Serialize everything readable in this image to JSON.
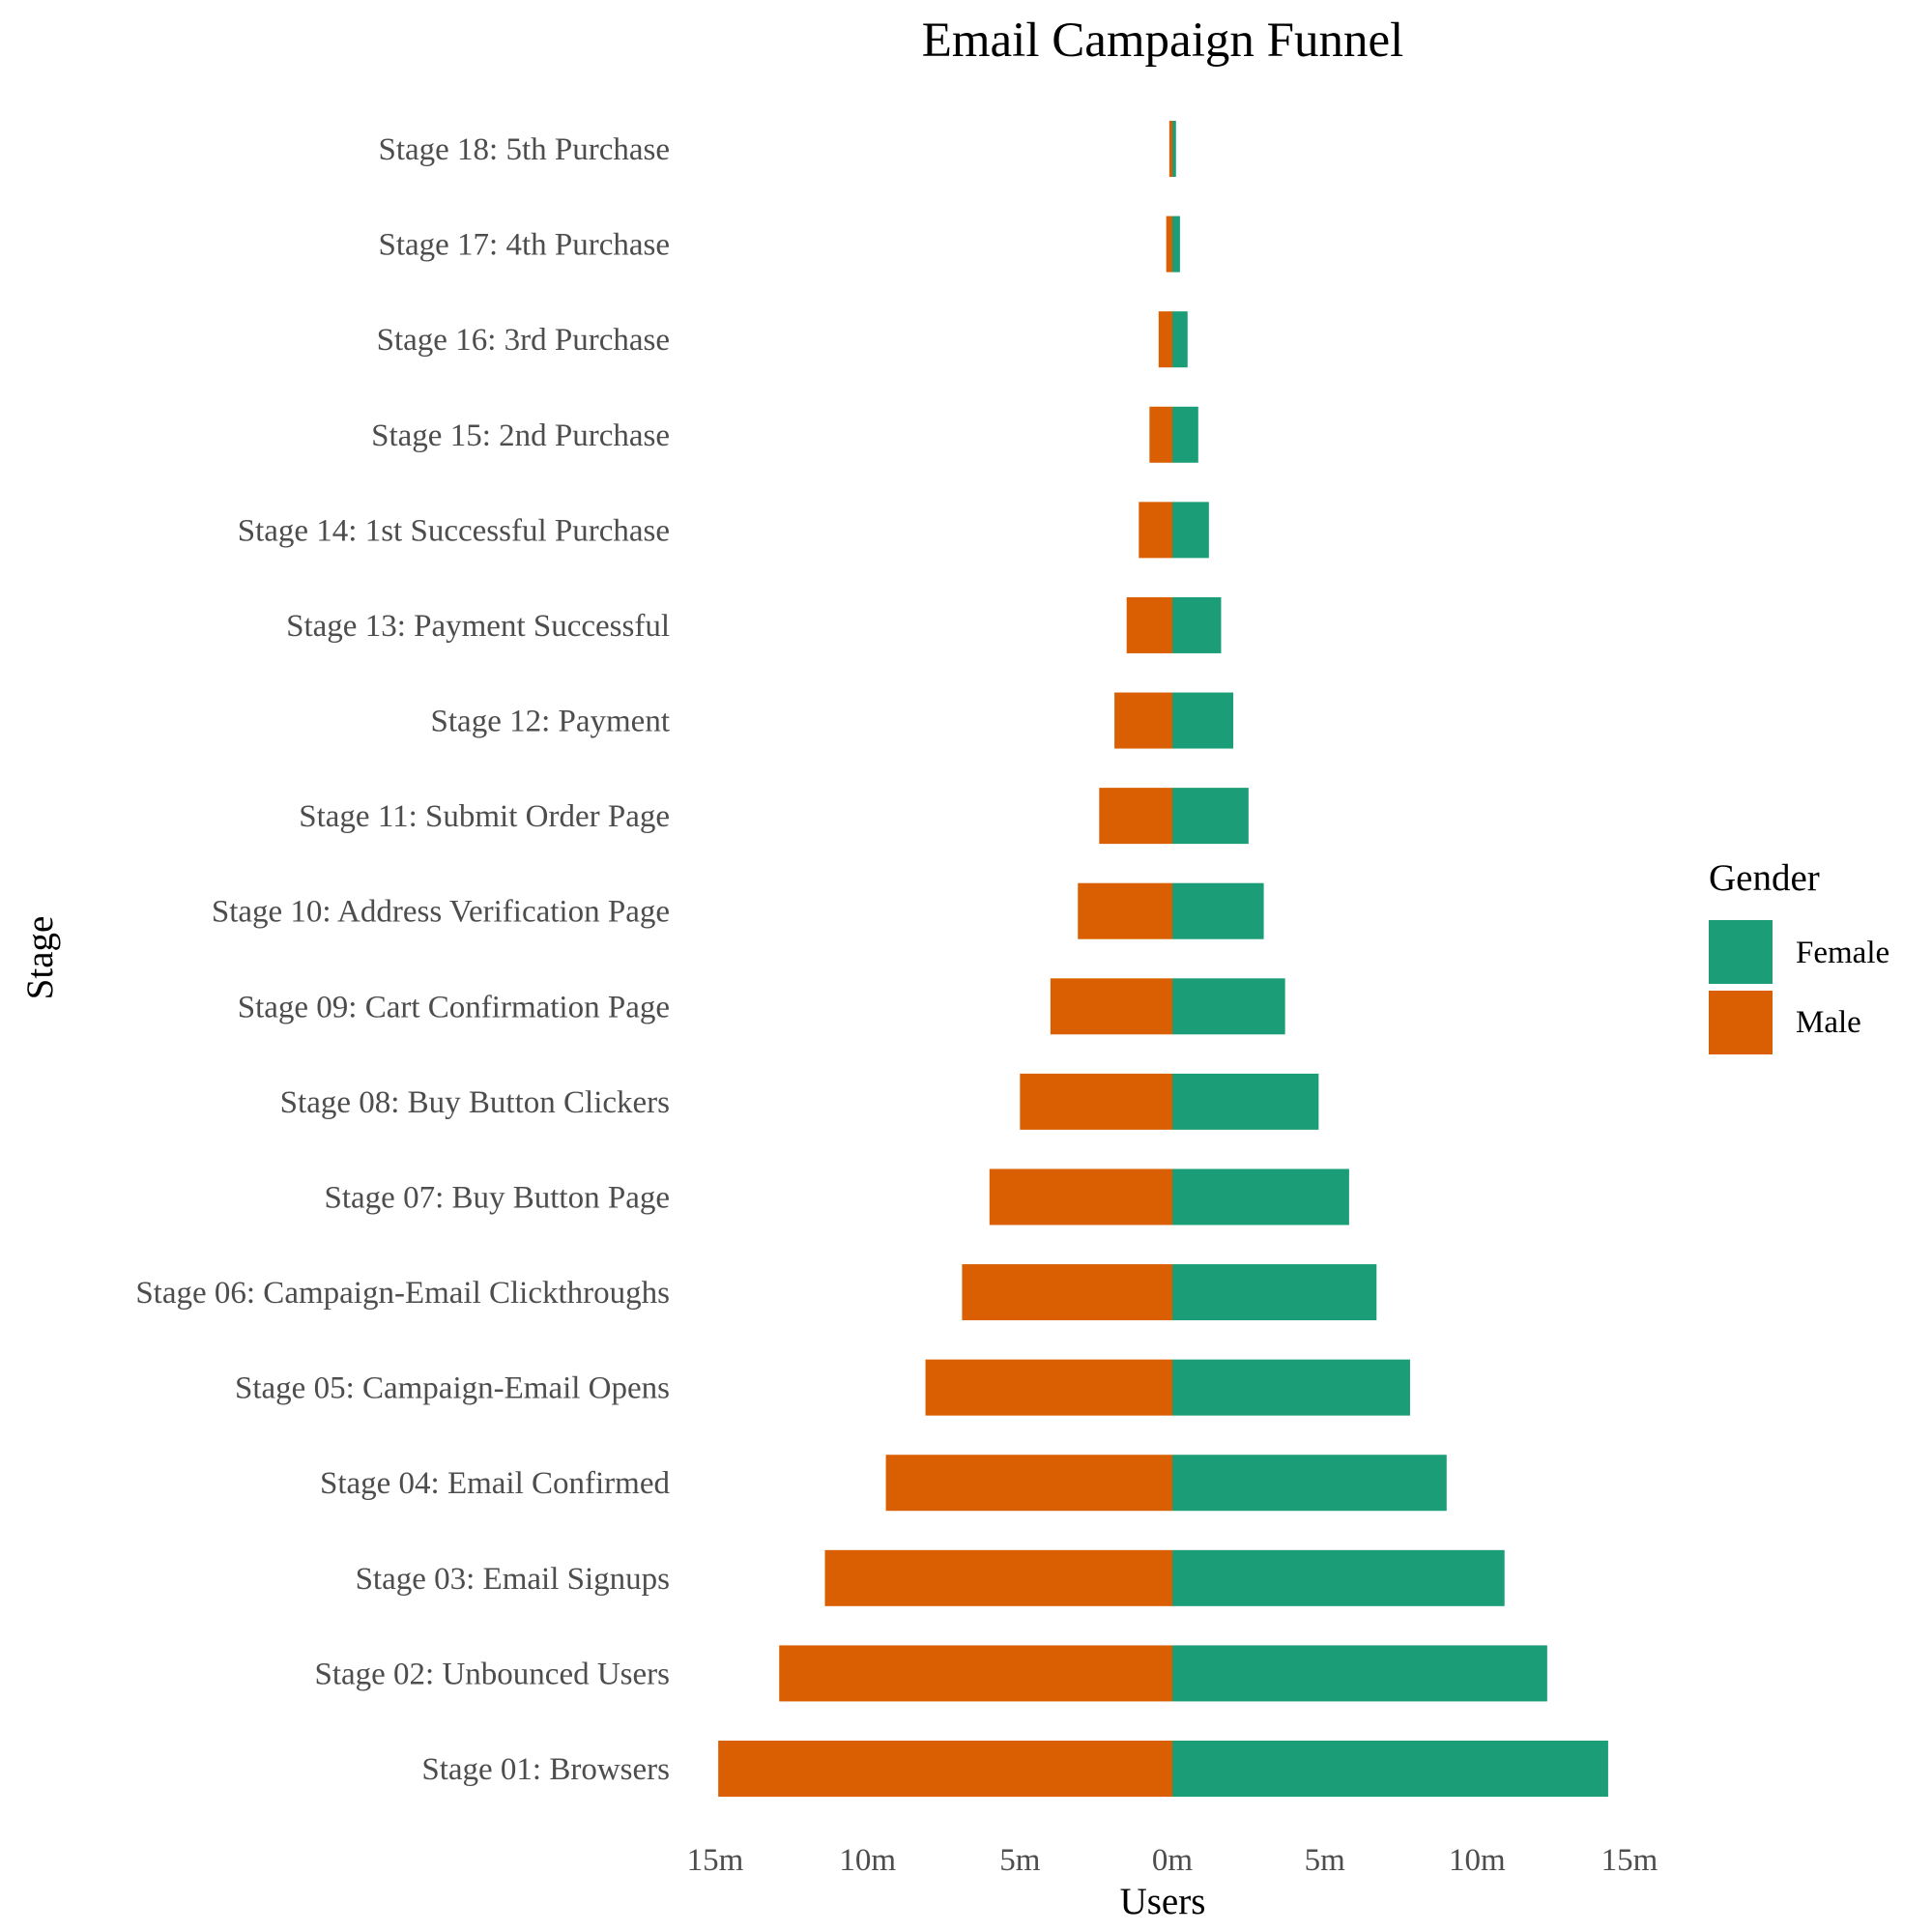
{
  "chart_data": {
    "type": "bar",
    "orientation": "horizontal",
    "stacked": "diverging",
    "title": "Email Campaign Funnel",
    "xlabel": "Users",
    "ylabel": "Stage",
    "xlim": [
      -15,
      15
    ],
    "x_ticks": [
      -15,
      -10,
      -5,
      0,
      5,
      10,
      15
    ],
    "x_tick_labels": [
      "15m",
      "10m",
      "5m",
      "0m",
      "5m",
      "10m",
      "15m"
    ],
    "grid": false,
    "legend_position": "right",
    "legend_title": "Gender",
    "categories": [
      "Stage 01: Browsers",
      "Stage 02: Unbounced Users",
      "Stage 03: Email Signups",
      "Stage 04: Email Confirmed",
      "Stage 05: Campaign-Email Opens",
      "Stage 06: Campaign-Email Clickthroughs",
      "Stage 07: Buy Button Page",
      "Stage 08: Buy Button Clickers",
      "Stage 09: Cart Confirmation Page",
      "Stage 10: Address Verification Page",
      "Stage 11: Submit Order Page",
      "Stage 12: Payment",
      "Stage 13: Payment Successful",
      "Stage 14: 1st Successful Purchase",
      "Stage 15: 2nd Purchase",
      "Stage 16: 3rd Purchase",
      "Stage 17: 4th Purchase",
      "Stage 18: 5th Purchase"
    ],
    "series": [
      {
        "name": "Female",
        "color": "#1b9e77",
        "values": [
          14.3,
          12.3,
          10.9,
          9.0,
          7.8,
          6.7,
          5.8,
          4.8,
          3.7,
          3.0,
          2.5,
          2.0,
          1.6,
          1.2,
          0.85,
          0.5,
          0.25,
          0.12
        ]
      },
      {
        "name": "Male",
        "color": "#d95f02",
        "values": [
          -14.9,
          -12.9,
          -11.4,
          -9.4,
          -8.1,
          -6.9,
          -6.0,
          -5.0,
          -4.0,
          -3.1,
          -2.4,
          -1.9,
          -1.5,
          -1.1,
          -0.75,
          -0.45,
          -0.2,
          -0.1
        ]
      }
    ]
  }
}
